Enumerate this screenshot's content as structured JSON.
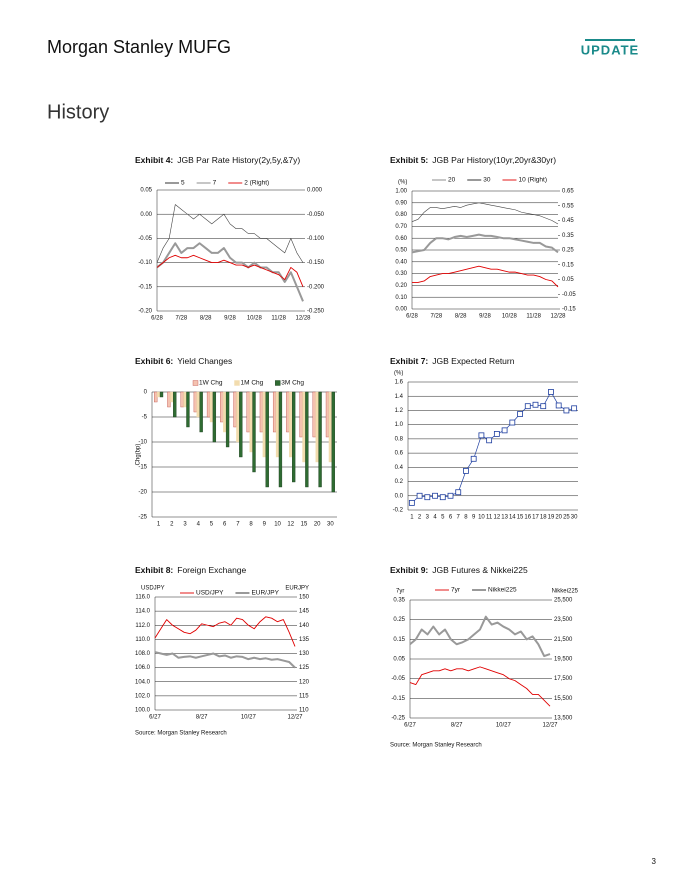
{
  "header": {
    "logo": "Morgan Stanley MUFG",
    "badge": "UPDATE"
  },
  "section": "History",
  "page_number": "3",
  "chart_data": [
    {
      "type": "line",
      "exhibit": "Exhibit 4:",
      "title": "JGB Par Rate History(2y,5y,&7y)",
      "legend": "top",
      "grid": true,
      "categories": [
        "6/28",
        null,
        null,
        null,
        "7/28",
        null,
        null,
        null,
        "8/28",
        null,
        null,
        null,
        "9/28",
        null,
        null,
        null,
        "10/28",
        null,
        null,
        null,
        "11/28",
        null,
        null,
        null,
        "12/28"
      ],
      "ylim": [
        -0.2,
        0.05
      ],
      "yticks": [
        {
          "value": -0.2,
          "label": "-0.20"
        },
        -0.15,
        {
          "value": -0.1,
          "label": "-0.10"
        },
        -0.05,
        {
          "value": 0,
          "label": "0.00"
        },
        0.05
      ],
      "y2lim": [
        -0.25,
        0
      ],
      "y2ticks": [
        {
          "value": -0.25,
          "label": "-0.250"
        },
        {
          "value": -0.2,
          "label": "-0.200"
        },
        {
          "value": -0.15,
          "label": "-0.150"
        },
        {
          "value": -0.1,
          "label": "-0.100"
        },
        {
          "value": -0.05,
          "label": "-0.050"
        },
        {
          "value": 0,
          "label": "0.000"
        }
      ],
      "series": [
        {
          "name": "5",
          "color": "#999999",
          "line_width": 2,
          "values": [
            -0.11,
            -0.1,
            -0.08,
            -0.06,
            -0.08,
            -0.07,
            -0.07,
            -0.06,
            -0.07,
            -0.08,
            -0.08,
            -0.07,
            -0.09,
            -0.1,
            -0.1,
            -0.11,
            -0.1,
            -0.11,
            -0.11,
            -0.12,
            -0.12,
            -0.14,
            -0.12,
            -0.15,
            -0.18
          ]
        },
        {
          "name": "7",
          "color": "#444444",
          "line_width": 0.6,
          "values": [
            -0.1,
            -0.07,
            -0.05,
            0.02,
            0.01,
            0.0,
            -0.01,
            0.0,
            -0.01,
            -0.02,
            -0.01,
            0.0,
            -0.02,
            -0.03,
            -0.03,
            -0.04,
            -0.04,
            -0.05,
            -0.05,
            -0.06,
            -0.07,
            -0.08,
            -0.05,
            -0.08,
            -0.1
          ]
        },
        {
          "name": "2 (Right)",
          "color": "#e00000",
          "line_width": 0.9,
          "axis": "y2",
          "values": [
            -0.16,
            -0.15,
            -0.14,
            -0.135,
            -0.14,
            -0.14,
            -0.135,
            -0.14,
            -0.145,
            -0.15,
            -0.15,
            -0.145,
            -0.15,
            -0.155,
            -0.155,
            -0.16,
            -0.155,
            -0.16,
            -0.165,
            -0.17,
            -0.175,
            -0.185,
            -0.16,
            -0.17,
            -0.2
          ]
        }
      ]
    },
    {
      "type": "line",
      "exhibit": "Exhibit 5:",
      "title": "JGB Par History(10yr,20yr&30yr)",
      "legend": "top",
      "grid": true,
      "ylabel": "(%)",
      "categories": [
        "6/28",
        null,
        null,
        null,
        "7/28",
        null,
        null,
        null,
        "8/28",
        null,
        null,
        null,
        "9/28",
        null,
        null,
        null,
        "10/28",
        null,
        null,
        null,
        "11/28",
        null,
        null,
        null,
        "12/28"
      ],
      "ylim": [
        0,
        1
      ],
      "yticks": [
        {
          "value": 0,
          "label": "0.00"
        },
        {
          "value": 0.1,
          "label": "0.10"
        },
        {
          "value": 0.2,
          "label": "0.20"
        },
        {
          "value": 0.3,
          "label": "0.30"
        },
        {
          "value": 0.4,
          "label": "0.40"
        },
        {
          "value": 0.5,
          "label": "0.50"
        },
        {
          "value": 0.6,
          "label": "0.60"
        },
        {
          "value": 0.7,
          "label": "0.70"
        },
        {
          "value": 0.8,
          "label": "0.80"
        },
        {
          "value": 0.9,
          "label": "0.90"
        },
        {
          "value": 1,
          "label": "1.00"
        }
      ],
      "y2lim": [
        -0.15,
        0.65
      ],
      "y2ticks": [
        -0.15,
        -0.05,
        0.05,
        0.15,
        0.25,
        0.35,
        0.45,
        0.55,
        0.65
      ],
      "series": [
        {
          "name": "20",
          "color": "#444444",
          "line_width": 0.6,
          "values": [
            0.74,
            0.76,
            0.82,
            0.86,
            0.86,
            0.85,
            0.86,
            0.87,
            0.86,
            0.88,
            0.89,
            0.9,
            0.89,
            0.88,
            0.87,
            0.86,
            0.85,
            0.84,
            0.82,
            0.81,
            0.8,
            0.79,
            0.77,
            0.75,
            0.72
          ]
        },
        {
          "name": "30",
          "color": "#999999",
          "line_width": 2,
          "values": [
            0.48,
            0.49,
            0.5,
            0.56,
            0.6,
            0.6,
            0.59,
            0.61,
            0.62,
            0.61,
            0.62,
            0.63,
            0.62,
            0.62,
            0.61,
            0.6,
            0.6,
            0.59,
            0.58,
            0.57,
            0.56,
            0.56,
            0.53,
            0.52,
            0.48
          ]
        },
        {
          "name": "10 (Right)",
          "color": "#e00000",
          "line_width": 0.9,
          "axis": "y2",
          "values": [
            0.03,
            0.03,
            0.04,
            0.07,
            0.08,
            0.09,
            0.09,
            0.1,
            0.11,
            0.12,
            0.13,
            0.14,
            0.13,
            0.12,
            0.12,
            0.11,
            0.1,
            0.1,
            0.09,
            0.08,
            0.08,
            0.07,
            0.05,
            0.04,
            0.0
          ]
        }
      ]
    },
    {
      "type": "bar",
      "exhibit": "Exhibit 6:",
      "title": "Yield Changes",
      "legend": "top",
      "grid": true,
      "ylabel": "Chg(bp)",
      "categories": [
        "1",
        "2",
        "3",
        "4",
        "5",
        "6",
        "7",
        "8",
        "9",
        "10",
        "12",
        "15",
        "20",
        "30"
      ],
      "ylim": [
        -25,
        0
      ],
      "yticks": [
        -25,
        -20,
        -15,
        -10,
        -5,
        0
      ],
      "series": [
        {
          "name": "1W Chg",
          "color": "#f4c2b0",
          "stroke": "#c0504d",
          "values": [
            -2,
            -3,
            -3,
            -4,
            -5,
            -6,
            -7,
            -8,
            -8,
            -8,
            -8,
            -9,
            -9,
            -9
          ]
        },
        {
          "name": "1M Chg",
          "color": "#f2dcae",
          "stroke": "#f2dcae",
          "values": [
            -1,
            -2,
            -3,
            -5,
            -6,
            -8,
            -10,
            -12,
            -13,
            -13,
            -13,
            -14,
            -14,
            -14
          ]
        },
        {
          "name": "3M Chg",
          "color": "#2f6b32",
          "stroke": "#1a3d1c",
          "values": [
            -1,
            -5,
            -7,
            -8,
            -10,
            -11,
            -13,
            -16,
            -19,
            -19,
            -18,
            -19,
            -19,
            -20
          ]
        }
      ]
    },
    {
      "type": "line",
      "exhibit": "Exhibit 7:",
      "title": "JGB Expected Return",
      "grid": true,
      "ylabel": "(%)",
      "marker": "square",
      "color": "#1f3fa0",
      "categories": [
        "1",
        "2",
        "3",
        "4",
        "5",
        "6",
        "7",
        "8",
        "9",
        "10",
        "11",
        "12",
        "13",
        "14",
        "15",
        "16",
        "17",
        "18",
        "19",
        "20",
        "25",
        "30"
      ],
      "values": [
        -0.1,
        0.0,
        -0.02,
        0.0,
        -0.02,
        0.0,
        0.05,
        0.35,
        0.52,
        0.85,
        0.78,
        0.87,
        0.92,
        1.03,
        1.15,
        1.26,
        1.28,
        1.26,
        1.46,
        1.27,
        1.2,
        1.23
      ],
      "ylim": [
        -0.2,
        1.6
      ],
      "yticks": [
        -0.2,
        {
          "value": 0,
          "label": "0.0"
        },
        0.2,
        0.4,
        0.6,
        0.8,
        {
          "value": 1,
          "label": "1.0"
        },
        1.2,
        1.4,
        1.6
      ]
    },
    {
      "type": "line",
      "exhibit": "Exhibit 8:",
      "title": "Foreign Exchange",
      "legend": "top",
      "grid": true,
      "ylabel": "USDJPY",
      "y2label": "EURJPY",
      "source": "Source: Morgan Stanley Research",
      "categories": [
        "6/27",
        null,
        null,
        null,
        null,
        null,
        null,
        null,
        "8/27",
        null,
        null,
        null,
        null,
        null,
        null,
        null,
        "10/27",
        null,
        null,
        null,
        null,
        null,
        null,
        null,
        "12/27"
      ],
      "ylim": [
        100,
        116
      ],
      "yticks": [
        {
          "value": 100,
          "label": "100.0"
        },
        {
          "value": 102,
          "label": "102.0"
        },
        {
          "value": 104,
          "label": "104.0"
        },
        {
          "value": 106,
          "label": "106.0"
        },
        {
          "value": 108,
          "label": "108.0"
        },
        {
          "value": 110,
          "label": "110.0"
        },
        {
          "value": 112,
          "label": "112.0"
        },
        {
          "value": 114,
          "label": "114.0"
        },
        {
          "value": 116,
          "label": "116.0"
        }
      ],
      "y2lim": [
        110,
        150
      ],
      "y2ticks": [
        110,
        115,
        120,
        125,
        130,
        135,
        140,
        145,
        150
      ],
      "series": [
        {
          "name": "USD/JPY",
          "color": "#e00000",
          "line_width": 0.9,
          "values": [
            110.2,
            111.5,
            112.8,
            112.0,
            111.5,
            111.0,
            110.8,
            111.3,
            112.2,
            112.0,
            111.8,
            112.3,
            112.5,
            112.0,
            113.0,
            112.8,
            112.0,
            111.5,
            112.5,
            113.2,
            113.0,
            112.5,
            112.8,
            111.0,
            109.0
          ]
        },
        {
          "name": "EUR/JPY",
          "color": "#999999",
          "line_width": 2,
          "axis": "y2",
          "values": [
            130.5,
            130.0,
            129.5,
            130.0,
            128.5,
            128.8,
            129.0,
            128.5,
            129.0,
            129.5,
            130.0,
            129.0,
            129.3,
            128.5,
            129.0,
            128.8,
            128.0,
            128.5,
            128.0,
            128.3,
            127.8,
            128.0,
            127.5,
            127.0,
            125.0
          ]
        }
      ]
    },
    {
      "type": "line",
      "exhibit": "Exhibit 9:",
      "title": "JGB Futures & Nikkei225",
      "legend": "top",
      "grid": true,
      "ylabel": "7yr",
      "y2label": "Nikkei225",
      "source": "Source: Morgan Stanley Research",
      "categories": [
        "6/27",
        null,
        null,
        null,
        null,
        null,
        null,
        null,
        "8/27",
        null,
        null,
        null,
        null,
        null,
        null,
        null,
        "10/27",
        null,
        null,
        null,
        null,
        null,
        null,
        null,
        "12/27"
      ],
      "ylim": [
        -0.25,
        0.35
      ],
      "yticks": [
        -0.25,
        -0.15,
        -0.05,
        0.05,
        0.15,
        0.25,
        0.35
      ],
      "y2lim": [
        13500,
        25500
      ],
      "y2ticks": [
        {
          "value": 13500,
          "label": "13,500"
        },
        {
          "value": 15500,
          "label": "15,500"
        },
        {
          "value": 17500,
          "label": "17,500"
        },
        {
          "value": 19500,
          "label": "19,500"
        },
        {
          "value": 21500,
          "label": "21,500"
        },
        {
          "value": 23500,
          "label": "23,500"
        },
        {
          "value": 25500,
          "label": "25,500"
        }
      ],
      "series": [
        {
          "name": "7yr",
          "color": "#e00000",
          "line_width": 0.9,
          "values": [
            -0.07,
            -0.08,
            -0.03,
            -0.02,
            -0.01,
            -0.01,
            0.0,
            -0.01,
            0.0,
            0.0,
            -0.01,
            0.0,
            0.01,
            0.0,
            -0.01,
            -0.02,
            -0.03,
            -0.05,
            -0.06,
            -0.08,
            -0.1,
            -0.13,
            -0.13,
            -0.16,
            -0.19
          ]
        },
        {
          "name": "Nikkei225",
          "color": "#999999",
          "line_width": 2,
          "axis": "y2",
          "values": [
            21000,
            21500,
            22500,
            22000,
            22800,
            22000,
            22500,
            21500,
            21000,
            21200,
            21500,
            22000,
            22500,
            23800,
            23000,
            23200,
            22800,
            22500,
            22000,
            22300,
            21500,
            21800,
            21000,
            19800,
            20000
          ]
        }
      ]
    }
  ]
}
